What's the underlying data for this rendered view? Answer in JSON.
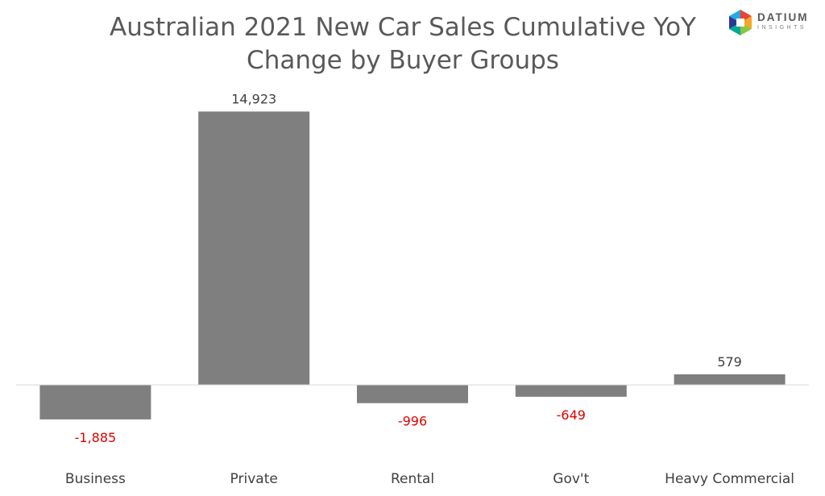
{
  "chart_data": {
    "type": "bar",
    "title": [
      "Australian 2021 New Car Sales Cumulative YoY",
      "Change by Buyer Groups"
    ],
    "categories": [
      "Business",
      "Private",
      "Rental",
      "Gov't",
      "Heavy Commercial"
    ],
    "values": [
      -1885,
      14923,
      -996,
      -649,
      579
    ],
    "data_labels": [
      "-1,885",
      "14,923",
      "-996",
      "-649",
      "579"
    ],
    "ylim": [
      -3000,
      16000
    ],
    "grid": false,
    "legend": "none",
    "colors": {
      "bar": "#7f7f7f",
      "axis": "#d9d9d9",
      "positive_label": "#404040",
      "negative_label": "#e00000",
      "category_label": "#404040",
      "title": "#595959"
    }
  },
  "logo": {
    "name": "DATIUM",
    "subtitle": "INSIGHTS",
    "colors": [
      "#e8443a",
      "#f6a623",
      "#27aae1",
      "#2b3990",
      "#00a99d",
      "#8dc63f"
    ]
  }
}
